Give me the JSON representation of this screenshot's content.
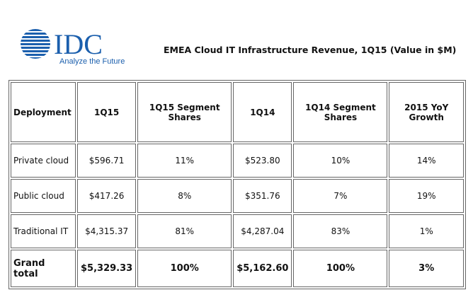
{
  "header": {
    "logo_text": "IDC",
    "tagline": "Analyze the Future",
    "title": "EMEA Cloud IT Infrastructure Revenue, 1Q15 (Value in $M)"
  },
  "table": {
    "columns": [
      "Deployment",
      "1Q15",
      "1Q15 Segment Shares",
      "1Q14",
      "1Q14 Segment Shares",
      "2015 YoY Growth"
    ],
    "rows": [
      [
        "Private cloud",
        "$596.71",
        "11%",
        "$523.80",
        "10%",
        "14%"
      ],
      [
        "Public cloud",
        "$417.26",
        "8%",
        "$351.76",
        "7%",
        "19%"
      ],
      [
        "Traditional IT",
        "$4,315.37",
        "81%",
        "$4,287.04",
        "83%",
        "1%"
      ],
      [
        "Grand total",
        "$5,329.33",
        "100%",
        "$5,162.60",
        "100%",
        "3%"
      ]
    ]
  }
}
